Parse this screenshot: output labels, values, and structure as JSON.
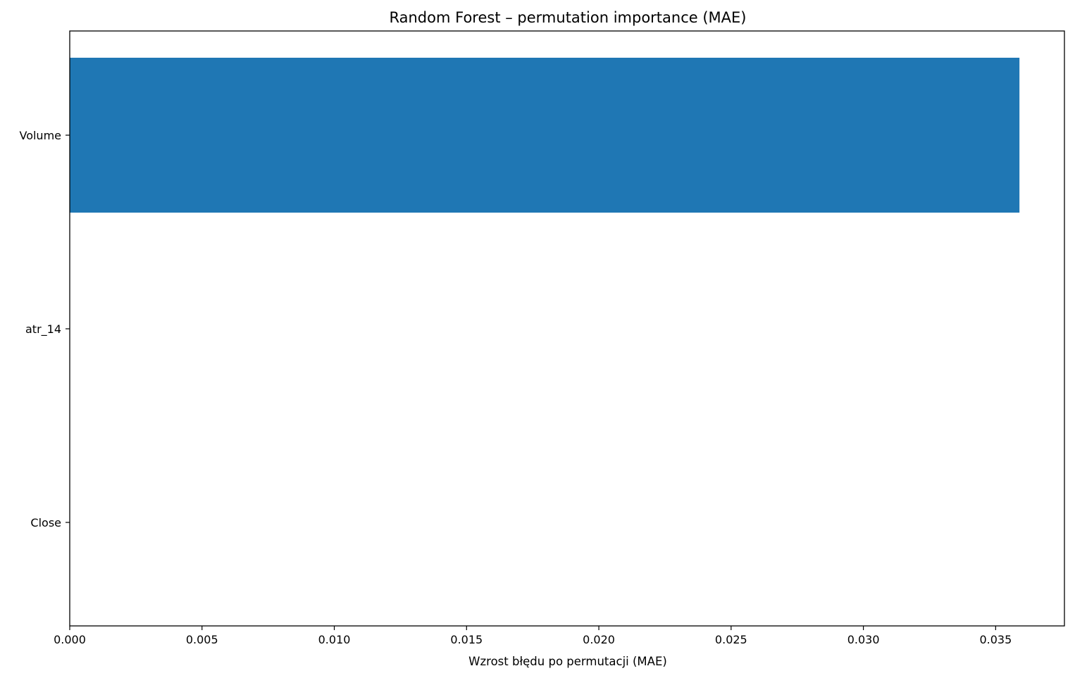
{
  "chart_data": {
    "type": "bar",
    "orientation": "horizontal",
    "title": "Random Forest – permutation importance (MAE)",
    "xlabel": "Wzrost błędu po permutacji (MAE)",
    "ylabel": "",
    "categories": [
      "Volume",
      "atr_14",
      "Close"
    ],
    "values": [
      0.0359,
      0.0,
      0.0
    ],
    "xlim": [
      0.0,
      0.0376
    ],
    "xticks": [
      "0.000",
      "0.005",
      "0.010",
      "0.015",
      "0.020",
      "0.025",
      "0.030",
      "0.035"
    ],
    "xtick_values": [
      0.0,
      0.005,
      0.01,
      0.015,
      0.02,
      0.025,
      0.03,
      0.035
    ],
    "bar_color": "#1f77b4",
    "grid": false,
    "legend": "none"
  }
}
